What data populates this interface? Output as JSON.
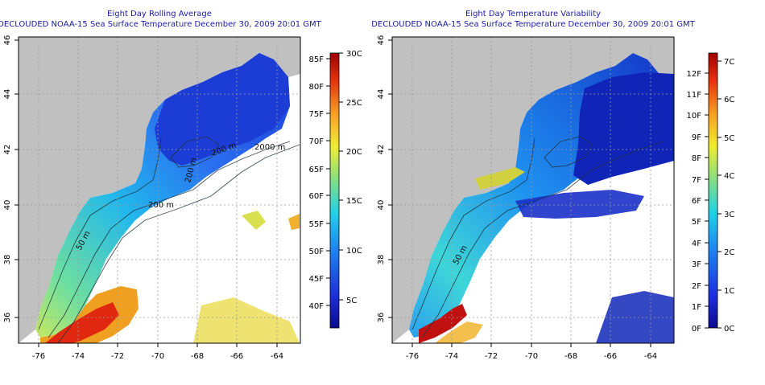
{
  "panels": [
    {
      "id": "rolling-average",
      "title_line1": "Eight Day Rolling Average",
      "title_line2": "DECLOUDED NOAA-15 Sea Surface Temperature December 30, 2009 20:01 GMT",
      "x_ticks": [
        "-76",
        "-74",
        "-72",
        "-70",
        "-68",
        "-66",
        "-64"
      ],
      "y_ticks": [
        "36",
        "38",
        "40",
        "42",
        "44",
        "46"
      ],
      "contour_labels": [
        "2000 m",
        "200 m",
        "200 m",
        "200 m",
        "50 m"
      ],
      "colorbar": {
        "f_labels": [
          "40F",
          "45F",
          "50F",
          "55F",
          "60F",
          "65F",
          "70F",
          "75F",
          "80F",
          "85F"
        ],
        "c_labels": [
          "5C",
          "10C",
          "15C",
          "20C",
          "25C",
          "30C"
        ]
      }
    },
    {
      "id": "temperature-variability",
      "title_line1": "Eight Day Temperature Variability",
      "title_line2": "DECLOUDED NOAA-15 Sea Surface Temperature December 30, 2009 20:01 GMT",
      "x_ticks": [
        "-76",
        "-74",
        "-72",
        "-70",
        "-68",
        "-66",
        "-64"
      ],
      "y_ticks": [
        "36",
        "38",
        "40",
        "42",
        "44",
        "46"
      ],
      "contour_labels": [
        "50 m"
      ],
      "colorbar": {
        "f_labels": [
          "0F",
          "1F",
          "2F",
          "3F",
          "4F",
          "5F",
          "6F",
          "7F",
          "8F",
          "9F",
          "10F",
          "11F",
          "12F"
        ],
        "c_labels": [
          "0C",
          "1C",
          "2C",
          "3C",
          "4C",
          "5C",
          "6C",
          "7C"
        ]
      }
    }
  ],
  "colors": {
    "land": "#c0c0c0",
    "no_data": "#ffffff",
    "ramp_low": "#0a0a8f",
    "ramp_high": "#a00000"
  }
}
